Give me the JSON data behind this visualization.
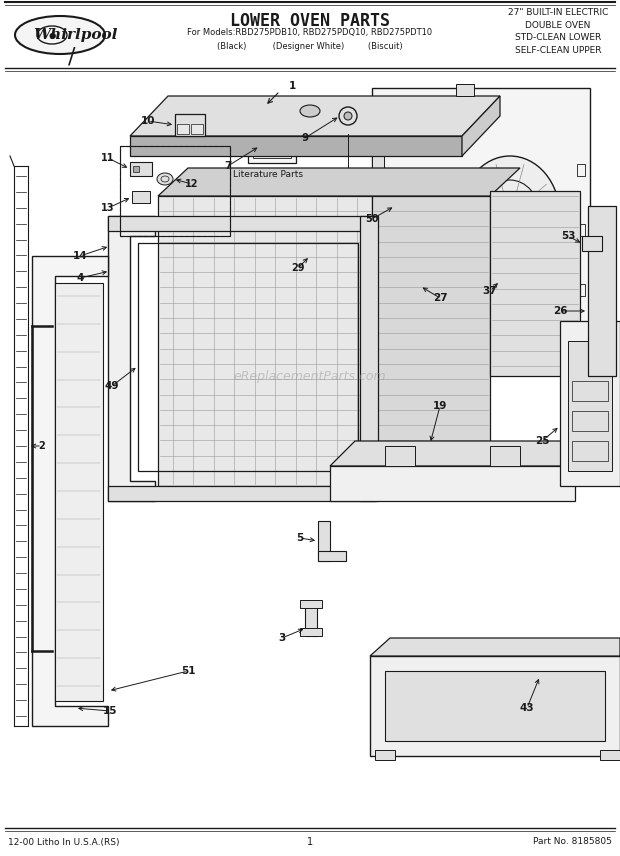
{
  "title": "LOWER OVEN PARTS",
  "subtitle_line1": "For Models:RBD275PDB10, RBD275PDQ10, RBD275PDT10",
  "subtitle_line2": "(Black)          (Designer White)         (Biscuit)",
  "top_right": "27\" BUILT-IN ELECTRIC\nDOUBLE OVEN\nSTD-CLEAN LOWER\nSELF-CLEAN UPPER",
  "bottom_left": "12-00 Litho In U.S.A.(RS)",
  "bottom_center": "1",
  "bottom_right": "Part No. 8185805",
  "watermark": "eReplacementParts.com",
  "lit_parts": "Literature Parts",
  "bg": "#ffffff",
  "lc": "#1a1a1a",
  "gray1": "#cccccc",
  "gray2": "#e0e0e0",
  "gray3": "#b0b0b0",
  "gray4": "#f0f0f0",
  "gray5": "#d8d8d8"
}
